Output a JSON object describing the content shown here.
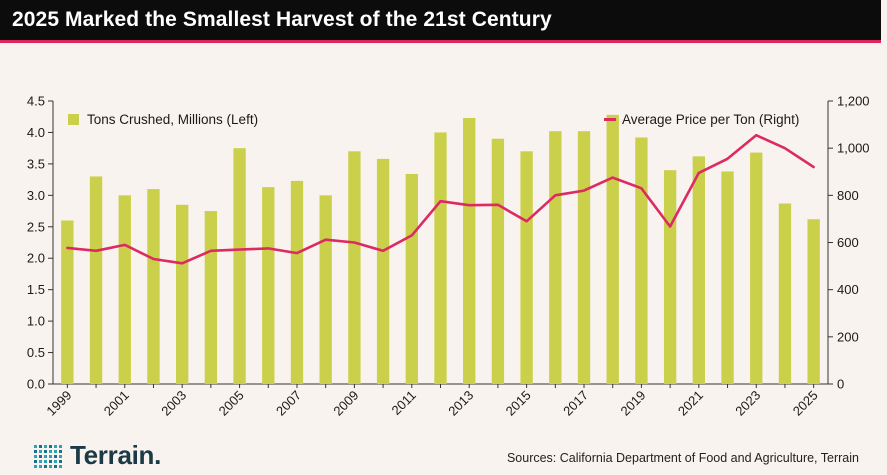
{
  "title": "2025 Marked the Smallest Harvest of the 21st Century",
  "source": "Sources: California Department of Food and Agriculture, Terrain",
  "brand": "Terrain.",
  "colors": {
    "bar": "#cbd04a",
    "line": "#dc2a63",
    "accent": "#e0245e",
    "title_bg": "#0c0c0c",
    "logo": "#1b3a47"
  },
  "chart_data": {
    "type": "bar+line",
    "x": [
      1999,
      2000,
      2001,
      2002,
      2003,
      2004,
      2005,
      2006,
      2007,
      2008,
      2009,
      2010,
      2011,
      2012,
      2013,
      2014,
      2015,
      2016,
      2017,
      2018,
      2019,
      2020,
      2021,
      2022,
      2023,
      2024,
      2025
    ],
    "x_tick_labels": [
      "1999",
      "2001",
      "2003",
      "2005",
      "2007",
      "2009",
      "2011",
      "2013",
      "2015",
      "2017",
      "2019",
      "2021",
      "2023",
      "2025"
    ],
    "series": [
      {
        "name": "Tons Crushed, Millions (Left)",
        "kind": "bar",
        "axis": "left",
        "values": [
          2.6,
          3.3,
          3.0,
          3.1,
          2.85,
          2.75,
          3.75,
          3.13,
          3.23,
          3.0,
          3.7,
          3.58,
          3.34,
          4.0,
          4.23,
          3.9,
          3.7,
          4.02,
          4.02,
          4.28,
          3.92,
          3.4,
          3.62,
          3.38,
          3.68,
          2.87,
          2.62
        ]
      },
      {
        "name": "Average Price per Ton (Right)",
        "kind": "line",
        "axis": "right",
        "values": [
          577,
          565,
          590,
          530,
          512,
          565,
          570,
          575,
          555,
          612,
          600,
          565,
          630,
          775,
          758,
          760,
          690,
          800,
          820,
          875,
          830,
          668,
          895,
          955,
          1055,
          1000,
          920
        ]
      }
    ],
    "y_left": {
      "min": 0,
      "max": 4.5,
      "ticks": [
        "0.0",
        "0.5",
        "1.0",
        "1.5",
        "2.0",
        "2.5",
        "3.0",
        "3.5",
        "4.0",
        "4.5"
      ]
    },
    "y_right": {
      "min": 0,
      "max": 1200,
      "ticks": [
        "0",
        "200",
        "400",
        "600",
        "800",
        "1,000",
        "1,200"
      ]
    },
    "legend": {
      "placement": "top",
      "left_label": "Tons Crushed, Millions (Left)",
      "right_label": "Average Price per Ton (Right)"
    },
    "grid": false
  }
}
